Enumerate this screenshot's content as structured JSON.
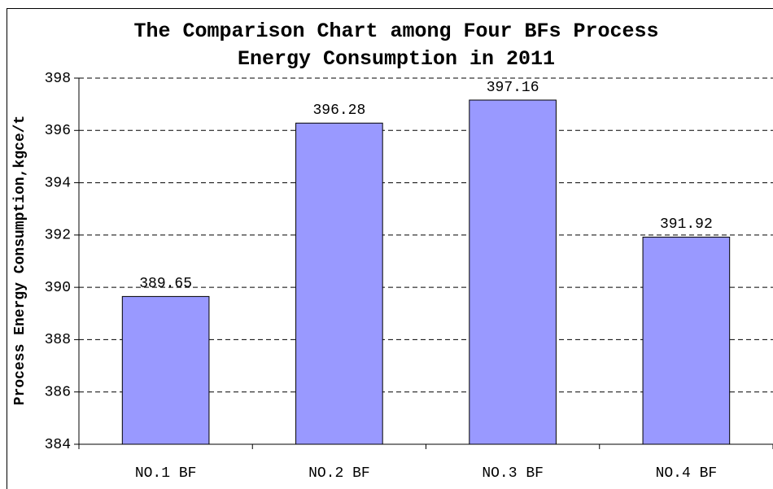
{
  "chart_data": {
    "type": "bar",
    "title": "The Comparison Chart among Four BFs Process Energy Consumption in 2011",
    "y_label": "Process Energy Consumption,kgce/t",
    "categories": [
      "NO.1 BF",
      "NO.2 BF",
      "NO.3 BF",
      "NO.4 BF"
    ],
    "values": [
      389.65,
      396.28,
      397.16,
      391.92
    ],
    "color": "#9999ff",
    "ylim": [
      384,
      398
    ],
    "yticks": [
      384,
      386,
      388,
      390,
      392,
      394,
      396,
      398
    ],
    "grid": true
  }
}
